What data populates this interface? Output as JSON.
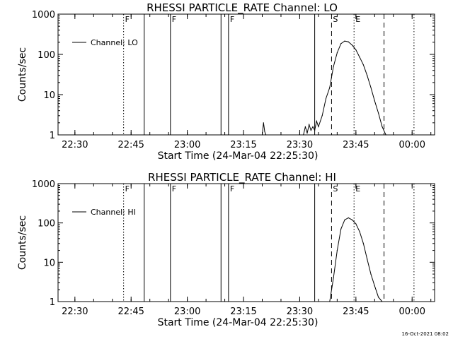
{
  "footer": {
    "stamp": "16-Oct-2021 08:02"
  },
  "chart_data": [
    {
      "type": "line",
      "title": "RHESSI PARTICLE_RATE Channel: LO",
      "xlabel": "Start Time (24-Mar-04 22:25:30)",
      "ylabel": "Counts/sec",
      "yscale": "log",
      "xlim": [
        "22:25:30",
        "00:06:00"
      ],
      "ylim": [
        1,
        1000
      ],
      "x_ticks": [
        "22:30",
        "22:45",
        "23:00",
        "23:15",
        "23:30",
        "23:45",
        "00:00"
      ],
      "y_ticks": [
        "1",
        "10",
        "100",
        "1000"
      ],
      "legend": {
        "placement": "top-left",
        "entries": [
          "Channel: LO"
        ]
      },
      "series": [
        {
          "name": "Channel: LO",
          "x": [
            "23:20:00",
            "23:20:20",
            "23:20:40",
            "23:21:00",
            "23:31:00",
            "23:31:30",
            "23:32:00",
            "23:32:30",
            "23:33:00",
            "23:33:30",
            "23:34:00",
            "23:34:30",
            "23:35:00",
            "23:36:00",
            "23:37:00",
            "23:38:00",
            "23:39:00",
            "23:40:00",
            "23:41:00",
            "23:42:00",
            "23:43:00",
            "23:44:00",
            "23:45:00",
            "23:46:00",
            "23:47:00",
            "23:48:00",
            "23:49:00",
            "23:50:00",
            "23:51:00",
            "23:52:00",
            "23:53:00"
          ],
          "y": [
            1,
            2,
            1.2,
            1,
            1,
            1.6,
            1.1,
            1.8,
            1.3,
            1.6,
            1.3,
            2.2,
            1.6,
            3,
            8,
            15,
            50,
            110,
            185,
            215,
            205,
            170,
            130,
            85,
            55,
            30,
            15,
            7,
            3.5,
            1.6,
            1
          ]
        }
      ],
      "markers": [
        {
          "label": "F",
          "time": "22:43:00",
          "style": "dotted"
        },
        {
          "time": "22:48:30",
          "style": "solid"
        },
        {
          "label": "F",
          "time": "22:55:30",
          "style": "solid"
        },
        {
          "time": "23:09:00",
          "style": "solid"
        },
        {
          "label": "F",
          "time": "23:11:00",
          "style": "solid"
        },
        {
          "time": "23:34:00",
          "style": "solid"
        },
        {
          "label": "S",
          "time": "23:38:30",
          "style": "dashed"
        },
        {
          "label": "E",
          "time": "23:44:30",
          "style": "dotted"
        },
        {
          "time": "23:52:30",
          "style": "dashed"
        },
        {
          "time": "00:00:30",
          "style": "dotted"
        }
      ]
    },
    {
      "type": "line",
      "title": "RHESSI PARTICLE_RATE Channel: HI",
      "xlabel": "Start Time (24-Mar-04 22:25:30)",
      "ylabel": "Counts/sec",
      "yscale": "log",
      "xlim": [
        "22:25:30",
        "00:06:00"
      ],
      "ylim": [
        1,
        1000
      ],
      "x_ticks": [
        "22:30",
        "22:45",
        "23:00",
        "23:15",
        "23:30",
        "23:45",
        "00:00"
      ],
      "y_ticks": [
        "1",
        "10",
        "100",
        "1000"
      ],
      "legend": {
        "placement": "top-left",
        "entries": [
          "Channel: HI"
        ]
      },
      "series": [
        {
          "name": "Channel: HI",
          "x": [
            "23:38:00",
            "23:39:00",
            "23:40:00",
            "23:41:00",
            "23:42:00",
            "23:43:00",
            "23:44:00",
            "23:45:00",
            "23:46:00",
            "23:47:00",
            "23:48:00",
            "23:49:00",
            "23:50:00",
            "23:51:00",
            "23:52:00"
          ],
          "y": [
            1,
            4,
            20,
            70,
            120,
            135,
            120,
            95,
            60,
            30,
            12,
            5,
            2.5,
            1.3,
            1
          ]
        }
      ],
      "markers": [
        {
          "label": "F",
          "time": "22:43:00",
          "style": "dotted"
        },
        {
          "time": "22:48:30",
          "style": "solid"
        },
        {
          "label": "F",
          "time": "22:55:30",
          "style": "solid"
        },
        {
          "time": "23:09:00",
          "style": "solid"
        },
        {
          "label": "F",
          "time": "23:11:00",
          "style": "solid"
        },
        {
          "time": "23:34:00",
          "style": "solid"
        },
        {
          "label": "S",
          "time": "23:38:30",
          "style": "dashed"
        },
        {
          "label": "E",
          "time": "23:44:30",
          "style": "dotted"
        },
        {
          "time": "23:52:30",
          "style": "dashed"
        },
        {
          "time": "00:00:30",
          "style": "dotted"
        }
      ]
    }
  ]
}
